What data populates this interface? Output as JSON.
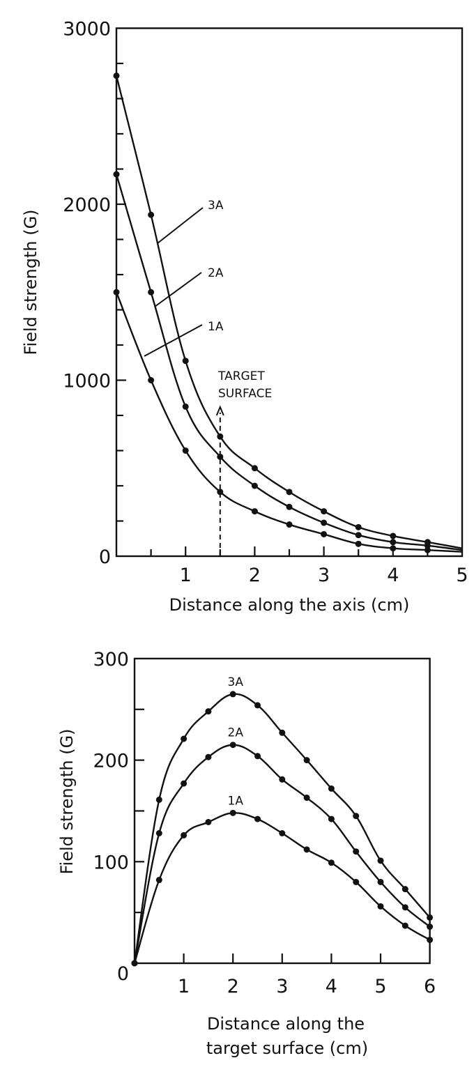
{
  "chart_data": [
    {
      "type": "line",
      "title": "",
      "xlabel": "Distance along the axis (cm)",
      "ylabel": "Field strength (G)",
      "xlim": [
        0,
        5
      ],
      "ylim": [
        0,
        3000
      ],
      "x_ticks": [
        "1",
        "2",
        "3",
        "4",
        "5"
      ],
      "y_ticks": [
        "0",
        "1000",
        "2000",
        "3000"
      ],
      "x_origin_label": "0",
      "grid": false,
      "legend": "inline labels",
      "x": [
        0,
        0.5,
        1.0,
        1.5,
        2.0,
        2.5,
        3.0,
        3.5,
        4.0,
        4.5
      ],
      "series": [
        {
          "name": "3A",
          "values": [
            2730,
            1940,
            1110,
            680,
            500,
            365,
            255,
            165,
            115,
            80
          ]
        },
        {
          "name": "2A",
          "values": [
            2170,
            1500,
            850,
            565,
            400,
            280,
            190,
            120,
            80,
            60
          ]
        },
        {
          "name": "1A",
          "values": [
            1500,
            1000,
            600,
            365,
            255,
            180,
            125,
            70,
            45,
            35
          ]
        }
      ],
      "curve_end_at_x5": {
        "3A": 45,
        "2A": 35,
        "1A": 25
      },
      "annotations": [
        {
          "text_line1": "TARGET",
          "text_line2": "SURFACE",
          "x": 1.5,
          "style": "dashed vertical line with arrow"
        }
      ]
    },
    {
      "type": "line",
      "title": "",
      "xlabel_line1": "Distance along the",
      "xlabel_line2": "target surface (cm)",
      "ylabel": "Field strength (G)",
      "xlim": [
        0,
        6
      ],
      "ylim": [
        0,
        300
      ],
      "x_ticks": [
        "1",
        "2",
        "3",
        "4",
        "5",
        "6"
      ],
      "y_ticks": [
        "0",
        "100",
        "200",
        "300"
      ],
      "grid": false,
      "legend": "inline labels above peaks",
      "x": [
        0,
        0.5,
        1.0,
        1.5,
        2.0,
        2.5,
        3.0,
        3.5,
        4.0,
        4.5,
        5.0,
        5.5,
        6.0
      ],
      "series": [
        {
          "name": "3A",
          "values": [
            0,
            161,
            221,
            248,
            265,
            254,
            227,
            200,
            172,
            145,
            101,
            73,
            45
          ]
        },
        {
          "name": "2A",
          "values": [
            0,
            128,
            177,
            203,
            215,
            204,
            181,
            163,
            142,
            110,
            80,
            55,
            36
          ]
        },
        {
          "name": "1A",
          "values": [
            0,
            82,
            126,
            139,
            148,
            142,
            128,
            112,
            99,
            80,
            56,
            37,
            23
          ]
        }
      ]
    }
  ]
}
